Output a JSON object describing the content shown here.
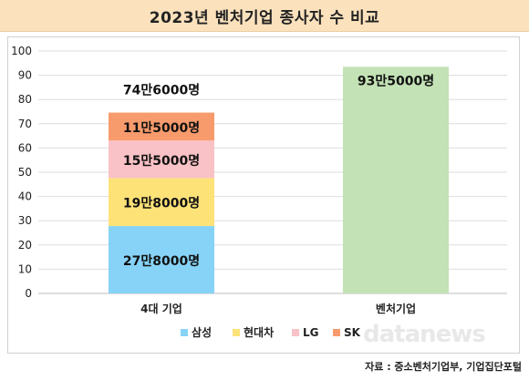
{
  "title": "2023년 벤처기업 종사자 수 비교",
  "source": "자료 : 중소벤처기업부, 기업집단포털",
  "watermark": "datanews",
  "chart_data": {
    "type": "bar",
    "stacked": true,
    "title": "2023년 벤처기업 종사자 수 비교",
    "categories": [
      "4대 기업",
      "벤처기업"
    ],
    "ylim": [
      0,
      100
    ],
    "yticks": [
      0,
      10,
      20,
      30,
      40,
      50,
      60,
      70,
      80,
      90,
      100
    ],
    "grid": true,
    "legend_position": "bottom-center",
    "series": [
      {
        "name": "삼성",
        "color": "#86d3f7",
        "values": [
          27.8,
          null
        ],
        "labels": [
          "27만8000명",
          ""
        ]
      },
      {
        "name": "현대차",
        "color": "#fde278",
        "values": [
          19.8,
          null
        ],
        "labels": [
          "19만8000명",
          ""
        ]
      },
      {
        "name": "LG",
        "color": "#f9c2c6",
        "values": [
          15.5,
          null
        ],
        "labels": [
          "15만5000명",
          ""
        ]
      },
      {
        "name": "SK",
        "color": "#f89b6c",
        "values": [
          11.5,
          null
        ],
        "labels": [
          "11만5000명",
          ""
        ]
      },
      {
        "color": "#c3e2b5",
        "values": [
          null,
          93.5
        ],
        "labels": [
          "",
          "93만5000명"
        ]
      }
    ],
    "totals": [
      "74만6000명",
      ""
    ]
  }
}
